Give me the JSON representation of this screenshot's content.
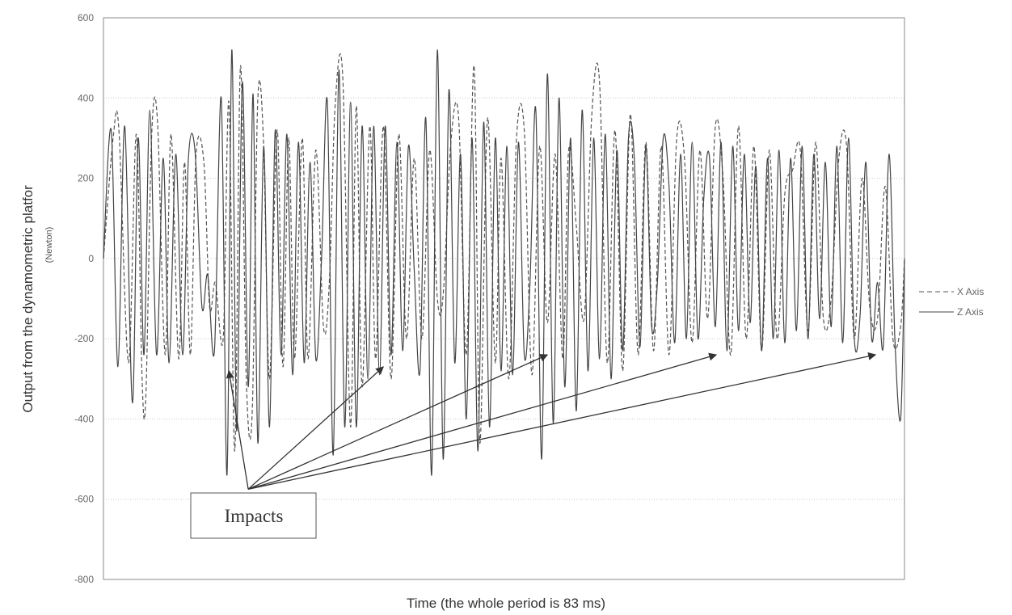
{
  "chart_data": {
    "type": "line",
    "title": "",
    "xlabel": "Time (the whole period is 83 ms)",
    "ylabel": "Output from the dynamometric platfor",
    "ylabel_unit": "(Newton)",
    "ylim": [
      -800,
      600
    ],
    "xlim": [
      0,
      83
    ],
    "y_ticks": [
      "600",
      "400",
      "200",
      "0",
      "-200",
      "-400",
      "-600",
      "-800"
    ],
    "grid": true,
    "legend_position": "right",
    "series": [
      {
        "name": "X Axis",
        "style": "dashed",
        "color": "#555555",
        "x": [
          0.0,
          1.0,
          1.6,
          2.6,
          3.4,
          4.0,
          4.4,
          5.0,
          5.6,
          6.4,
          7.0,
          7.8,
          8.4,
          9.0,
          9.6,
          10.4,
          11.0,
          11.6,
          12.4,
          13.0,
          13.6,
          14.2,
          14.8,
          15.4,
          16.0,
          16.6,
          17.2,
          18.0,
          18.6,
          19.2,
          19.8,
          20.6,
          21.2,
          22.0,
          22.8,
          23.4,
          24.0,
          24.8,
          25.6,
          26.2,
          26.8,
          27.6,
          28.2,
          29.0,
          29.8,
          30.6,
          31.4,
          32.2,
          33.0,
          33.8,
          34.6,
          35.2,
          36.0,
          36.8,
          37.6,
          38.4,
          39.0,
          39.8,
          40.6,
          41.2,
          42.0,
          42.8,
          43.6,
          44.4,
          45.2,
          46.0,
          46.8,
          47.6,
          48.2,
          49.0,
          49.8,
          50.6,
          51.4,
          52.2,
          53.0,
          53.8,
          54.6,
          55.4,
          56.2,
          57.0,
          57.8,
          58.6,
          59.4,
          60.2,
          61.0,
          61.8,
          62.6,
          63.4,
          64.2,
          65.0,
          65.8,
          66.6,
          67.4,
          68.2,
          69.0,
          69.8,
          70.6,
          71.4,
          72.2,
          73.0,
          73.8,
          74.6,
          75.4,
          76.2,
          77.0,
          77.8,
          78.6,
          79.4,
          80.2,
          81.0,
          81.8,
          82.6,
          83.0
        ],
        "y": [
          0,
          300,
          320,
          -260,
          310,
          -300,
          -340,
          310,
          340,
          -240,
          310,
          -250,
          240,
          -240,
          260,
          240,
          -120,
          -60,
          -200,
          390,
          -480,
          480,
          -300,
          -390,
          400,
          280,
          -300,
          320,
          -270,
          300,
          -250,
          300,
          -250,
          270,
          -170,
          -60,
          380,
          450,
          -420,
          380,
          -320,
          330,
          -250,
          330,
          -300,
          310,
          -200,
          250,
          -200,
          270,
          -100,
          -90,
          290,
          350,
          -240,
          480,
          -460,
          350,
          -260,
          250,
          -300,
          300,
          320,
          -290,
          280,
          -160,
          260,
          -250,
          270,
          80,
          -150,
          360,
          440,
          -260,
          320,
          -280,
          360,
          -240,
          290,
          -230,
          280,
          -240,
          300,
          250,
          -210,
          270,
          -150,
          330,
          200,
          -240,
          330,
          -200,
          280,
          -230,
          270,
          -200,
          160,
          220,
          270,
          -180,
          290,
          -150,
          -100,
          250,
          280,
          -200,
          200,
          -120,
          -150,
          180,
          -200,
          -170,
          0
        ]
      },
      {
        "name": "Z Axis",
        "style": "solid",
        "color": "#444444",
        "x": [
          0.0,
          0.8,
          1.5,
          2.2,
          3.0,
          3.6,
          4.2,
          4.8,
          5.5,
          6.2,
          6.8,
          7.5,
          8.2,
          8.8,
          9.5,
          10.2,
          10.8,
          11.5,
          12.2,
          12.8,
          13.3,
          13.8,
          14.4,
          15.0,
          15.5,
          16.0,
          16.6,
          17.2,
          17.8,
          18.4,
          19.0,
          19.6,
          20.2,
          20.8,
          21.4,
          22.0,
          22.6,
          23.2,
          23.8,
          24.4,
          25.0,
          25.6,
          26.2,
          26.8,
          27.4,
          28.0,
          28.6,
          29.2,
          29.8,
          30.4,
          31.0,
          31.6,
          32.2,
          32.8,
          33.4,
          34.0,
          34.6,
          35.2,
          35.8,
          36.4,
          37.0,
          37.6,
          38.2,
          38.8,
          39.4,
          40.0,
          40.6,
          41.2,
          41.8,
          42.4,
          43.0,
          43.6,
          44.2,
          44.8,
          45.4,
          46.0,
          46.6,
          47.2,
          47.8,
          48.4,
          49.0,
          49.6,
          50.2,
          50.8,
          51.4,
          52.0,
          52.6,
          53.2,
          53.8,
          54.4,
          55.0,
          55.6,
          56.2,
          56.8,
          57.4,
          58.0,
          58.6,
          59.2,
          59.8,
          60.4,
          61.0,
          61.6,
          62.2,
          62.8,
          63.4,
          64.0,
          64.6,
          65.2,
          65.8,
          66.4,
          67.0,
          67.6,
          68.2,
          68.8,
          69.4,
          70.0,
          70.6,
          71.2,
          71.8,
          72.4,
          73.0,
          73.6,
          74.2,
          74.8,
          75.4,
          76.0,
          76.6,
          77.2,
          77.8,
          78.4,
          79.0,
          79.6,
          80.2,
          80.8,
          81.4,
          82.0,
          82.6,
          83.0
        ],
        "y": [
          0,
          320,
          -270,
          330,
          -360,
          300,
          -240,
          370,
          -240,
          250,
          -260,
          260,
          -240,
          250,
          265,
          -120,
          -40,
          -230,
          400,
          -540,
          520,
          -430,
          440,
          -320,
          410,
          -460,
          280,
          -420,
          320,
          -240,
          310,
          -290,
          290,
          -260,
          240,
          -250,
          0,
          390,
          -490,
          470,
          -420,
          390,
          -420,
          330,
          -300,
          330,
          -290,
          330,
          -240,
          290,
          -230,
          280,
          -30,
          -280,
          350,
          -540,
          520,
          -500,
          420,
          -260,
          260,
          -400,
          300,
          -480,
          340,
          -420,
          300,
          -280,
          280,
          -290,
          290,
          -240,
          -60,
          370,
          -500,
          460,
          -410,
          400,
          -320,
          300,
          -380,
          370,
          -280,
          300,
          -250,
          310,
          -300,
          270,
          -230,
          300,
          250,
          -220,
          280,
          -170,
          -60,
          300,
          180,
          -210,
          260,
          -200,
          290,
          -200,
          150,
          250,
          -170,
          290,
          -230,
          280,
          -180,
          260,
          -160,
          230,
          -230,
          250,
          -200,
          270,
          -210,
          250,
          -180,
          280,
          -200,
          260,
          -150,
          240,
          -170,
          280,
          -210,
          300,
          -200,
          -140,
          240,
          -200,
          -60,
          -220,
          260,
          -200,
          -400,
          0
        ]
      }
    ],
    "annotations": [
      {
        "text": "Impacts",
        "source": {
          "x": 15.0,
          "y": -575
        },
        "targets": [
          {
            "x": 13.0,
            "y": -280
          },
          {
            "x": 29.0,
            "y": -270
          },
          {
            "x": 46.0,
            "y": -240
          },
          {
            "x": 63.5,
            "y": -240
          },
          {
            "x": 80.0,
            "y": -240
          }
        ]
      }
    ]
  }
}
